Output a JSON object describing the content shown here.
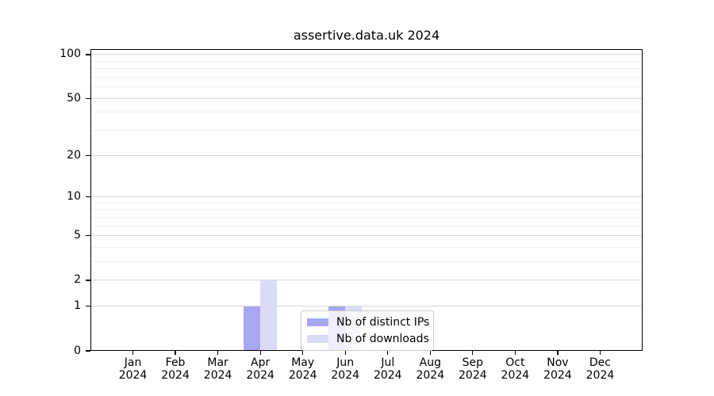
{
  "figure": {
    "background": "#ffffff"
  },
  "chart_data": {
    "type": "bar",
    "title": "assertive.data.uk 2024",
    "categories": [
      "Jan",
      "Feb",
      "Mar",
      "Apr",
      "May",
      "Jun",
      "Jul",
      "Aug",
      "Sep",
      "Oct",
      "Nov",
      "Dec"
    ],
    "year_label": "2024",
    "series": [
      {
        "name": "Nb of distinct IPs",
        "color": "#a8a8f0",
        "values": [
          0,
          0,
          0,
          1,
          0,
          1,
          0,
          0,
          0,
          0,
          0,
          0
        ]
      },
      {
        "name": "Nb of downloads",
        "color": "#dbdbf8",
        "values": [
          0,
          0,
          0,
          2,
          0,
          1,
          0,
          0,
          0,
          0,
          0,
          0
        ]
      }
    ],
    "xlabel": "",
    "ylabel": "",
    "y_scale": "log1p",
    "ylim": [
      0,
      109
    ],
    "y_major_ticks": [
      0,
      1,
      2,
      5,
      10,
      20,
      50,
      100
    ],
    "y_minor_gridlines": [
      3,
      4,
      6,
      7,
      8,
      9,
      30,
      40,
      60,
      70,
      80,
      90
    ],
    "grid": true,
    "legend_position": "inside-bottom-center"
  },
  "colors": {
    "axis": "#000000",
    "grid_major": "#d6d6d6",
    "grid_minor": "#f0f0f0",
    "legend_border": "#c9c9c9",
    "legend_background": "rgba(255,255,255,0.8)",
    "tick_label": "#000000"
  }
}
